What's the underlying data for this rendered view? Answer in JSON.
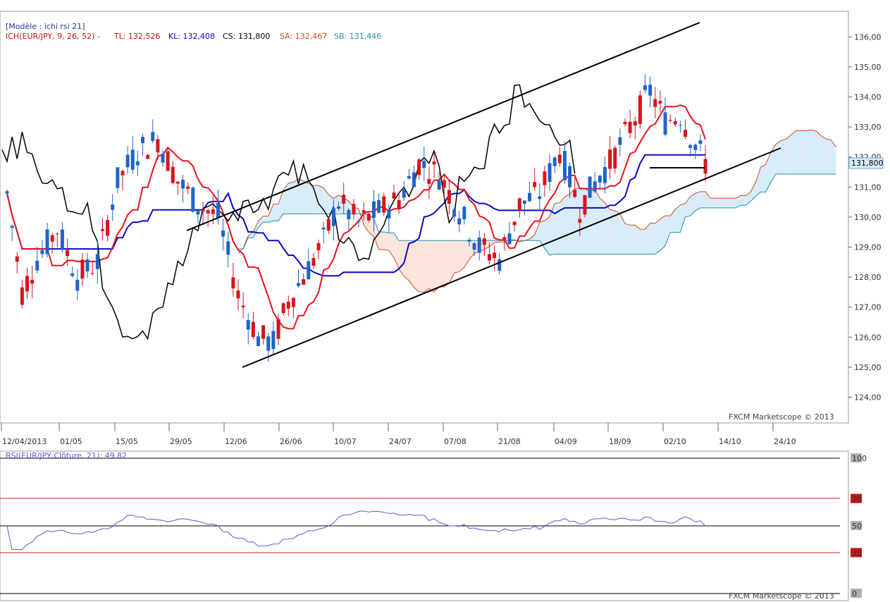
{
  "header": {
    "model": "[Modèle : ichi rsi 21]",
    "indicator_prefix": "ICH(EUR/JPY, 9, 26, 52) -",
    "tl": "TL: 132,526",
    "kl": "KL: 132,408",
    "cs": "CS: 131,800",
    "sa": "SA: 132,467",
    "sb": "SB: 131,446"
  },
  "watermark": "FXCM Marketscope © 2013",
  "price_tag": "131,800",
  "rsi_label": "RSI(EUR/JPY,Clôture, 21): 49,82",
  "colors": {
    "bull": "#1f64c8",
    "bear": "#d8141c",
    "tenkan": "#e8141c",
    "kijun": "#0a0ac8",
    "chikou": "#000000",
    "senkou_a": "#d8481c",
    "senkou_b": "#1e90b4",
    "cloud_bull": "#d8ecf8",
    "cloud_bear": "#fae4dc",
    "rsi": "#5a5ad8"
  },
  "chart_data": [
    {
      "type": "candlestick",
      "y_ticks": [
        "124,00",
        "125,00",
        "126,00",
        "127,00",
        "128,00",
        "129,00",
        "130,00",
        "131,00",
        "132,00",
        "133,00",
        "134,00",
        "135,00",
        "136,00"
      ],
      "ylim": [
        123.2,
        136.6
      ],
      "x_labels": [
        "12/04/2013",
        "01/05",
        "15/05",
        "29/05",
        "12/06",
        "26/06",
        "10/07",
        "24/07",
        "07/08",
        "21/08",
        "04/09",
        "18/09",
        "02/10",
        "14/10",
        "24/10"
      ],
      "last_price": 131.8,
      "values": {
        "tenkan": 132.526,
        "kijun": 132.408,
        "chikou": 131.8,
        "senkou_a": 132.467,
        "senkou_b": 131.446
      }
    },
    {
      "type": "line",
      "name": "RSI(EUR/JPY,Clôture, 21)",
      "last_value": 49.82,
      "y_ticks": [
        "100",
        "70",
        "50",
        "30",
        "0"
      ],
      "levels": [
        100,
        70,
        50,
        30,
        0
      ]
    }
  ]
}
